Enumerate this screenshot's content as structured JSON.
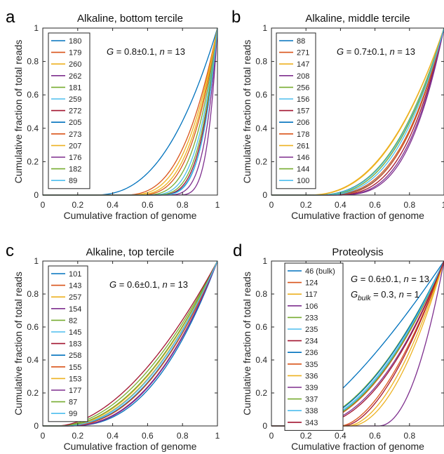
{
  "panel_letters": [
    "a",
    "b",
    "c",
    "d"
  ],
  "colors": [
    "#0072BD",
    "#D95319",
    "#EDB120",
    "#7E2F8E",
    "#77AC30",
    "#4DBEEE",
    "#A2142F"
  ],
  "chart_data": [
    {
      "type": "line",
      "letter": "a",
      "title": "Alkaline, bottom tercile",
      "xlabel": "Cumulative fraction of genome",
      "ylabel": "Cumulative fraction of total reads",
      "xlim": [
        0,
        1
      ],
      "ylim": [
        0,
        1
      ],
      "xticks": [
        "0",
        "0.2",
        "0.4",
        "0.6",
        "0.8",
        "1"
      ],
      "yticks": [
        "0",
        "0.2",
        "0.4",
        "0.6",
        "0.8",
        "1"
      ],
      "grid": false,
      "legend": "top-left",
      "annotation": {
        "g_label": "G",
        "g_value": "= 0.8±0.1, ",
        "n_label": "n",
        "n_value": " = 13"
      },
      "series": [
        {
          "name": "180",
          "x0": 0.28,
          "k": 2.5
        },
        {
          "name": "179",
          "x0": 0.44,
          "k": 2.9
        },
        {
          "name": "260",
          "x0": 0.47,
          "k": 3.0
        },
        {
          "name": "262",
          "x0": 0.66,
          "k": 4.6
        },
        {
          "name": "181",
          "x0": 0.55,
          "k": 3.4
        },
        {
          "name": "259",
          "x0": 0.58,
          "k": 3.6
        },
        {
          "name": "272",
          "x0": 0.62,
          "k": 3.9
        },
        {
          "name": "205",
          "x0": 0.62,
          "k": 4.2
        },
        {
          "name": "273",
          "x0": 0.52,
          "k": 3.2
        },
        {
          "name": "207",
          "x0": 0.5,
          "k": 3.1
        },
        {
          "name": "176",
          "x0": 0.74,
          "k": 4.6
        },
        {
          "name": "182",
          "x0": 0.6,
          "k": 3.8
        },
        {
          "name": "89",
          "x0": 0.64,
          "k": 4.0
        }
      ]
    },
    {
      "type": "line",
      "letter": "b",
      "title": "Alkaline, middle tercile",
      "xlabel": "Cumulative fraction of genome",
      "ylabel": "Cumulative fraction of total reads",
      "xlim": [
        0,
        1
      ],
      "ylim": [
        0,
        1
      ],
      "xticks": [
        "0",
        "0.2",
        "0.4",
        "0.6",
        "0.8",
        "1"
      ],
      "yticks": [
        "0",
        "0.2",
        "0.4",
        "0.6",
        "0.8",
        "1"
      ],
      "grid": false,
      "legend": "top-left",
      "annotation": {
        "g_label": "G",
        "g_value": "= 0.7±0.1, ",
        "n_label": "n",
        "n_value": " = 13"
      },
      "series": [
        {
          "name": "88",
          "x0": 0.24,
          "k": 2.6
        },
        {
          "name": "271",
          "x0": 0.28,
          "k": 2.9
        },
        {
          "name": "147",
          "x0": 0.2,
          "k": 2.4
        },
        {
          "name": "208",
          "x0": 0.36,
          "k": 3.2
        },
        {
          "name": "256",
          "x0": 0.26,
          "k": 2.5
        },
        {
          "name": "156",
          "x0": 0.25,
          "k": 2.6
        },
        {
          "name": "157",
          "x0": 0.33,
          "k": 3.0
        },
        {
          "name": "206",
          "x0": 0.3,
          "k": 2.9
        },
        {
          "name": "178",
          "x0": 0.32,
          "k": 2.8
        },
        {
          "name": "261",
          "x0": 0.21,
          "k": 2.4
        },
        {
          "name": "146",
          "x0": 0.35,
          "k": 3.1
        },
        {
          "name": "144",
          "x0": 0.27,
          "k": 2.6
        },
        {
          "name": "100",
          "x0": 0.28,
          "k": 2.7
        }
      ]
    },
    {
      "type": "line",
      "letter": "c",
      "title": "Alkaline, top tercile",
      "xlabel": "Cumulative fraction of genome",
      "ylabel": "Cumulative fraction of total reads",
      "xlim": [
        0,
        1
      ],
      "ylim": [
        0,
        1
      ],
      "xticks": [
        "0",
        "0.2",
        "0.4",
        "0.6",
        "0.8",
        "1"
      ],
      "yticks": [
        "0",
        "0.2",
        "0.4",
        "0.6",
        "0.8",
        "1"
      ],
      "grid": false,
      "legend": "top-left",
      "annotation": {
        "g_label": "G",
        "g_value": "= 0.6±0.1, ",
        "n_label": "n",
        "n_value": " = 13"
      },
      "series": [
        {
          "name": "101",
          "x0": 0.12,
          "k": 2.2
        },
        {
          "name": "143",
          "x0": 0.1,
          "k": 2.0
        },
        {
          "name": "257",
          "x0": 0.11,
          "k": 2.1
        },
        {
          "name": "154",
          "x0": 0.14,
          "k": 2.3
        },
        {
          "name": "82",
          "x0": 0.09,
          "k": 1.9
        },
        {
          "name": "145",
          "x0": 0.12,
          "k": 2.1
        },
        {
          "name": "183",
          "x0": 0.08,
          "k": 1.8
        },
        {
          "name": "258",
          "x0": 0.15,
          "k": 2.4
        },
        {
          "name": "155",
          "x0": 0.13,
          "k": 2.2
        },
        {
          "name": "153",
          "x0": 0.11,
          "k": 2.0
        },
        {
          "name": "177",
          "x0": 0.15,
          "k": 2.3
        },
        {
          "name": "87",
          "x0": 0.1,
          "k": 2.0
        },
        {
          "name": "99",
          "x0": 0.12,
          "k": 2.1
        }
      ]
    },
    {
      "type": "line",
      "letter": "d",
      "title": "Proteolysis",
      "xlabel": "Cumulative fraction of genome",
      "ylabel": "Cumulative fraction of total reads",
      "xlim": [
        0,
        1
      ],
      "ylim": [
        0,
        1
      ],
      "xticks": [
        "0",
        "0.2",
        "0.4",
        "0.6",
        "0.8"
      ],
      "yticks": [
        "0",
        "0.2",
        "0.4",
        "0.6",
        "0.8",
        "1"
      ],
      "grid": false,
      "legend": "top-left",
      "annotation": {
        "g_label": "G",
        "g_value": "= 0.6±0.1, ",
        "n_label": "n",
        "n_value": " = 13",
        "gb_label": "G",
        "gb_sub": "bulk",
        "gb_value": " = 0.3, ",
        "n2_value": " = 1"
      },
      "series": [
        {
          "name": "46 (bulk)",
          "x0": 0.1,
          "k": 1.4
        },
        {
          "name": "124",
          "x0": 0.18,
          "k": 2.0
        },
        {
          "name": "117",
          "x0": 0.46,
          "k": 1.9
        },
        {
          "name": "106",
          "x0": 0.62,
          "k": 2.1
        },
        {
          "name": "233",
          "x0": 0.14,
          "k": 1.9
        },
        {
          "name": "235",
          "x0": 0.16,
          "k": 2.0
        },
        {
          "name": "234",
          "x0": 0.42,
          "k": 1.7
        },
        {
          "name": "236",
          "x0": 0.15,
          "k": 1.9
        },
        {
          "name": "335",
          "x0": 0.4,
          "k": 1.7
        },
        {
          "name": "336",
          "x0": 0.44,
          "k": 1.8
        },
        {
          "name": "339",
          "x0": 0.2,
          "k": 2.1
        },
        {
          "name": "337",
          "x0": 0.17,
          "k": 2.0
        },
        {
          "name": "338",
          "x0": 0.16,
          "k": 1.95
        },
        {
          "name": "343",
          "x0": 0.22,
          "k": 2.1
        }
      ]
    }
  ]
}
